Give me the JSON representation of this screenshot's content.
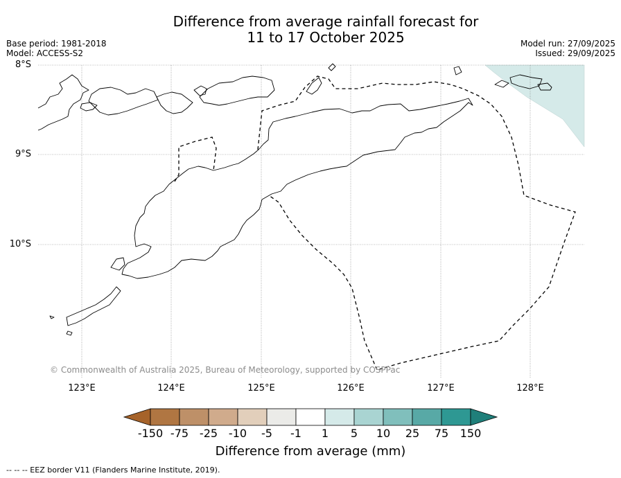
{
  "title": {
    "line1": "Difference from average rainfall forecast for",
    "line2": "11 to 17 October 2025"
  },
  "meta": {
    "base_period": "Base period: 1981-2018",
    "model": "Model: ACCESS-S2",
    "model_run": "Model run: 27/09/2025",
    "issued": "Issued: 29/09/2025"
  },
  "map": {
    "lat_labels": [
      "8°S",
      "9°S",
      "10°S"
    ],
    "lon_labels": [
      "123°E",
      "124°E",
      "125°E",
      "126°E",
      "127°E",
      "128°E"
    ],
    "copyright": "© Commonwealth of Australia 2025, Bureau of Meteorology, supported by COSPPac",
    "anomaly_color": "#d5eae9",
    "coast_color": "#000000",
    "eez_color": "#000000"
  },
  "colorbar": {
    "labels": [
      "-150",
      "-75",
      "-25",
      "-10",
      "-5",
      "-1",
      "1",
      "5",
      "10",
      "25",
      "75",
      "150"
    ],
    "colors": [
      "#a6632a",
      "#b07642",
      "#be9068",
      "#d0ab8c",
      "#e2cfbb",
      "#ebebe8",
      "#ffffff",
      "#d5eae9",
      "#a9d4d2",
      "#80bfbc",
      "#58a9a6",
      "#2e9893",
      "#1f7f7a"
    ],
    "title": "Difference from average (mm)"
  },
  "footnote": "--  --  -- EEZ border V11 (Flanders Marine Institute, 2019)."
}
